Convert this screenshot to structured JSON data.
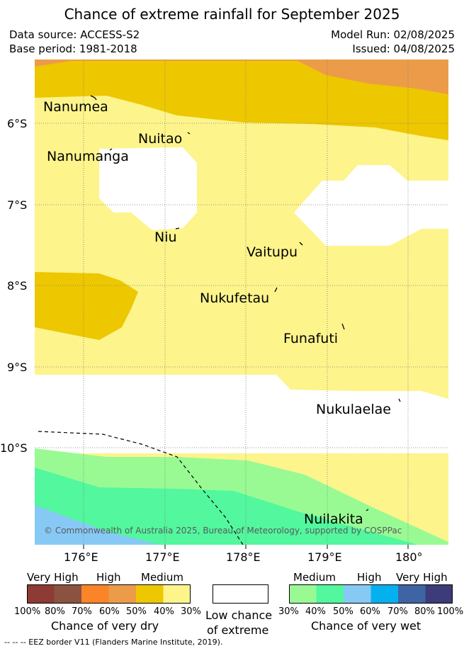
{
  "title": "Chance of extreme rainfall for September 2025",
  "header": {
    "data_source": "Data source: ACCESS-S2",
    "base_period": "Base period: 1981-2018",
    "model_run": "Model Run: 02/08/2025",
    "issued": "Issued: 04/08/2025"
  },
  "map": {
    "latitudes": [
      "6°S",
      "7°S",
      "8°S",
      "9°S",
      "10°S"
    ],
    "longitudes": [
      "176°E",
      "177°E",
      "178°E",
      "179°E",
      "180°"
    ],
    "places": {
      "nanumea": "Nanumea",
      "nuitao": "Nuitao",
      "nanumanga": "Nanumanga",
      "niu": "Niu",
      "vaitupu": "Vaitupu",
      "nukufetau": "Nukufetau",
      "funafuti": "Funafuti",
      "nukulaelae": "Nukulaelae",
      "nuilakita": "Nuilakita"
    },
    "copyright": "© Commonwealth of Australia 2025, Bureau of Meteorology, supported by COSPPac",
    "colors": {
      "dry_orange": "#ec9c48",
      "dry_gold": "#edc700",
      "dry_yellow": "#fdf48c",
      "wet_lightgreen": "#99fa94",
      "wet_green": "#52f79e",
      "wet_blue": "#87c9f5"
    }
  },
  "legend": {
    "dry": {
      "headers": {
        "very_high": "Very High",
        "high": "High",
        "medium": "Medium"
      },
      "ticks": [
        "100%",
        "80%",
        "70%",
        "60%",
        "50%",
        "40%",
        "30%"
      ],
      "caption": "Chance of very dry",
      "colors": [
        "#8d3b34",
        "#8b533f",
        "#fa8427",
        "#ec9c48",
        "#edc700",
        "#fdf48c"
      ]
    },
    "low": {
      "caption_line1": "Low chance",
      "caption_line2": "of extreme"
    },
    "wet": {
      "headers": {
        "medium": "Medium",
        "high": "High",
        "very_high": "Very High"
      },
      "ticks": [
        "30%",
        "40%",
        "50%",
        "60%",
        "70%",
        "80%",
        "100%"
      ],
      "caption": "Chance of very wet",
      "colors": [
        "#99fa94",
        "#52f79e",
        "#87c9f5",
        "#04b1ee",
        "#3e64a3",
        "#3d3b79"
      ]
    }
  },
  "eez_note": "-- -- -- EEZ border V11 (Flanders Marine Institute, 2019)."
}
